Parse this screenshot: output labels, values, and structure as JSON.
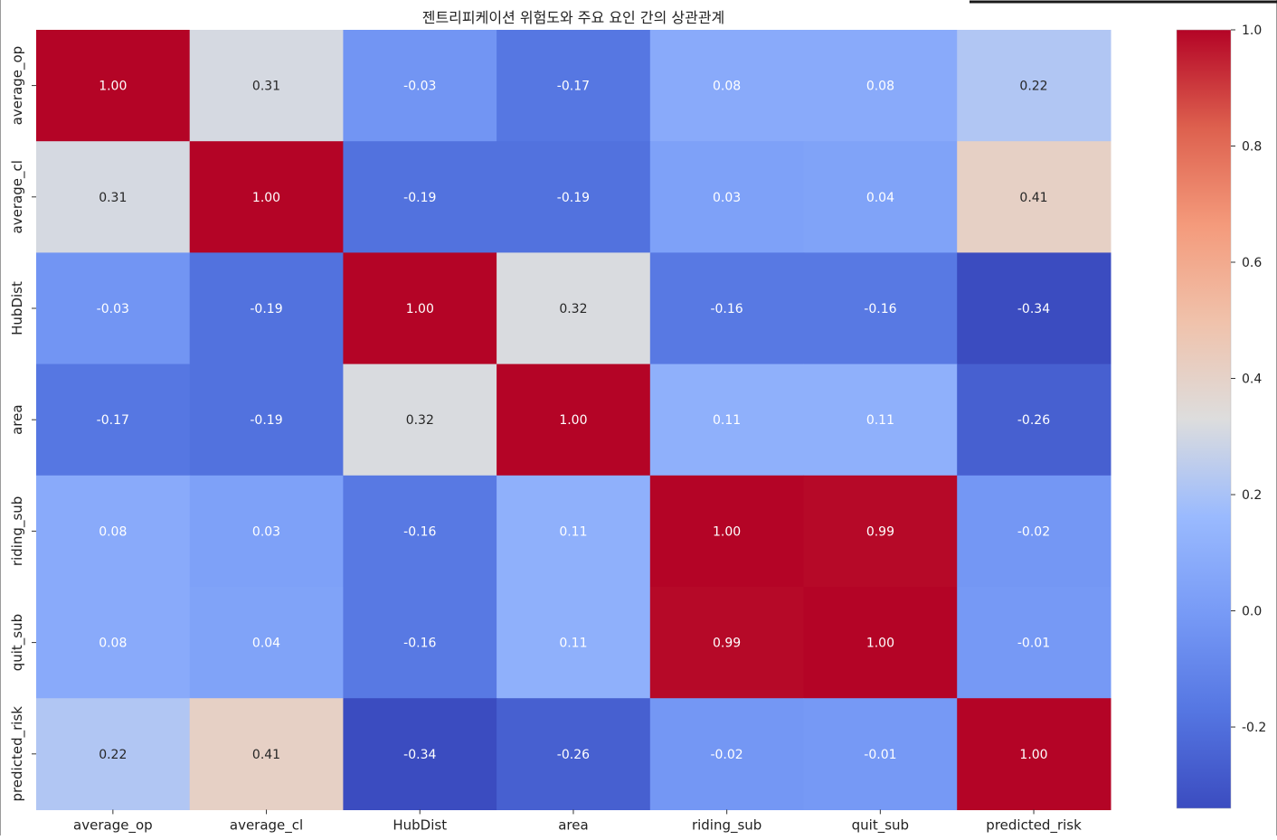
{
  "chart_data": {
    "type": "heatmap",
    "title": "젠트리피케이션 위험도와 주요 요인 간의 상관관계",
    "xlabel": "",
    "ylabel": "",
    "variables": [
      "average_op",
      "average_cl",
      "HubDist",
      "area",
      "riding_sub",
      "quit_sub",
      "predicted_risk"
    ],
    "matrix": [
      [
        1.0,
        0.31,
        -0.03,
        -0.17,
        0.08,
        0.08,
        0.22
      ],
      [
        0.31,
        1.0,
        -0.19,
        -0.19,
        0.03,
        0.04,
        0.41
      ],
      [
        -0.03,
        -0.19,
        1.0,
        0.32,
        -0.16,
        -0.16,
        -0.34
      ],
      [
        -0.17,
        -0.19,
        0.32,
        1.0,
        0.11,
        0.11,
        -0.26
      ],
      [
        0.08,
        0.03,
        -0.16,
        0.11,
        1.0,
        0.99,
        -0.02
      ],
      [
        0.08,
        0.04,
        -0.16,
        0.11,
        0.99,
        1.0,
        -0.01
      ],
      [
        0.22,
        0.41,
        -0.34,
        -0.26,
        -0.02,
        -0.01,
        1.0
      ]
    ],
    "colormap": "coolwarm",
    "value_range": [
      -0.34,
      1.0
    ],
    "colorbar_ticks": [
      "1.0",
      "0.8",
      "0.6",
      "0.4",
      "0.2",
      "0.0",
      "-0.2"
    ],
    "annotations": true,
    "annotation_format": "2 decimals",
    "grid": false,
    "legend": "colorbar-right"
  }
}
